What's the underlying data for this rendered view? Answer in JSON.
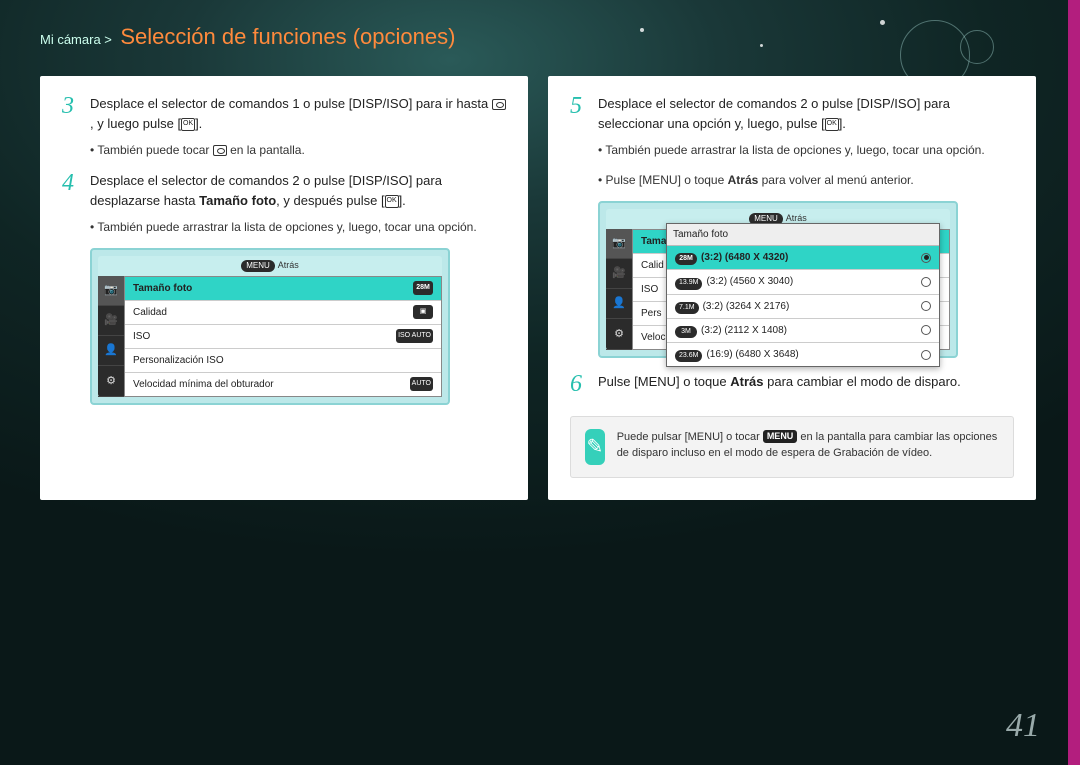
{
  "pagenum": "41",
  "header": {
    "breadcrumb": "Mi cámara >",
    "title": "Selección de funciones (opciones)"
  },
  "accent_color": "#b31e7e",
  "left": {
    "steps": [
      {
        "n": "3",
        "text_a": "Desplace el selector de comandos 1 o pulse [",
        "key1": "DISP/ISO",
        "text_b": "] para ir hasta ",
        "text_c": ", y luego pulse [",
        "text_d": "].",
        "bullets": [
          "También puede tocar  en la pantalla."
        ]
      },
      {
        "n": "4",
        "text_a": "Desplace el selector de comandos 2 o pulse [",
        "key1": "DISP/ISO",
        "text_b": "] para desplazarse hasta ",
        "bold": "Tamaño foto",
        "text_c": ", y después pulse [",
        "text_d": "].",
        "bullets": [
          "También puede arrastrar la lista de opciones y, luego, tocar una opción."
        ]
      }
    ],
    "lcd": {
      "back_label": "Atrás",
      "sidebar_icons": [
        "📷",
        "🎥",
        "👤",
        "⚙"
      ],
      "rows": [
        {
          "label": "Tamaño foto",
          "badge": "28M",
          "selected": true
        },
        {
          "label": "Calidad",
          "badge": "▣",
          "selected": false
        },
        {
          "label": "ISO",
          "badge": "ISO\nAUTO",
          "selected": false
        },
        {
          "label": "Personalización ISO",
          "badge": "",
          "selected": false
        },
        {
          "label": "Velocidad mínima del obturador",
          "badge": "AUTO",
          "selected": false
        }
      ]
    }
  },
  "right": {
    "steps": [
      {
        "n": "5",
        "text_a": "Desplace el selector de comandos 2 o pulse [",
        "key1": "DISP/ISO",
        "text_b": "] para seleccionar una opción y, luego, pulse [",
        "text_c": "].",
        "bullets": [
          "También puede arrastrar la lista de opciones y, luego, tocar una opción.",
          "Pulse [MENU] o toque Atrás para volver al menú anterior."
        ]
      },
      {
        "n": "6",
        "text_a": "Pulse [",
        "key1": "MENU",
        "text_b": "] o toque ",
        "bold": "Atrás",
        "text_c": " para cambiar el modo de disparo."
      }
    ],
    "lcd": {
      "back_label": "Atrás",
      "sidebar_icons": [
        "📷",
        "🎥",
        "👤",
        "⚙"
      ],
      "bg_rows": [
        "Tama",
        "Calid",
        "ISO",
        "Pers",
        "Veloc"
      ],
      "popup_title": "Tamaño foto",
      "options": [
        {
          "pill": "28M",
          "label": "(3:2) (6480 X 4320)",
          "checked": true
        },
        {
          "pill": "13.9M",
          "label": "(3:2) (4560 X 3040)",
          "checked": false
        },
        {
          "pill": "7.1M",
          "label": "(3:2) (3264 X 2176)",
          "checked": false
        },
        {
          "pill": "3M",
          "label": "(3:2) (2112 X 1408)",
          "checked": false
        },
        {
          "pill": "23.6M",
          "label": "(16:9) (6480 X 3648)",
          "checked": false
        }
      ]
    },
    "note": {
      "text_a": "Puede pulsar [",
      "key1": "MENU",
      "text_b": "] o tocar ",
      "keycap": "MENU",
      "text_c": " en la pantalla para cambiar las opciones de disparo incluso en el modo de espera de Grabación de vídeo."
    }
  }
}
